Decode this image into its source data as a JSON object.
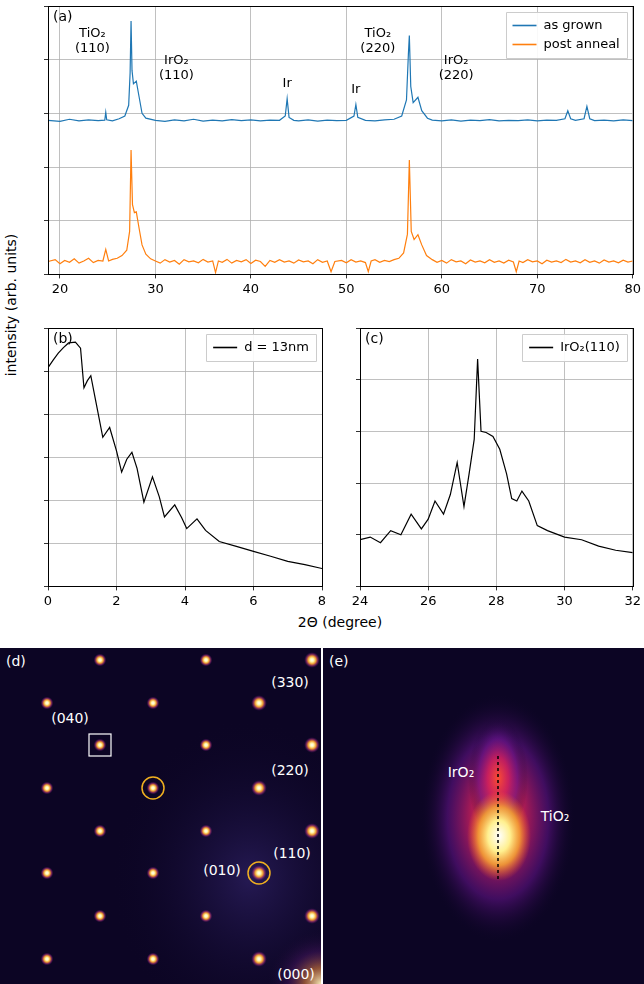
{
  "figure": {
    "ylabel": "intensity (arb. units)",
    "xlabel": "2Θ (degree)"
  },
  "chart_data": [
    {
      "panel": "(a)",
      "type": "line",
      "xlim": [
        18.75,
        80
      ],
      "xticks": [
        20,
        30,
        40,
        50,
        60,
        70,
        80
      ],
      "ylim": [
        0,
        10
      ],
      "yticks": [
        0,
        2,
        4,
        6,
        8,
        10
      ],
      "grid": true,
      "tick_labels": "x",
      "legend": "upper right",
      "series": [
        {
          "name": "as grown",
          "color": "#1f77b4",
          "x": [
            18.75,
            20,
            21,
            22,
            23,
            24,
            24.7,
            24.8,
            24.9,
            25.5,
            26.2,
            26.8,
            27.2,
            27.35,
            27.45,
            27.55,
            27.7,
            28,
            28.3,
            28.6,
            29,
            30,
            31,
            32,
            33,
            34,
            35,
            36,
            37,
            38,
            39,
            40,
            41,
            42,
            43,
            43.6,
            43.8,
            44,
            44.5,
            45,
            46,
            47,
            48,
            49,
            50,
            50.8,
            51,
            51.2,
            52,
            53,
            54,
            55,
            55.8,
            56.3,
            56.5,
            56.6,
            56.75,
            57,
            57.5,
            57.9,
            58.5,
            59,
            60,
            61,
            62,
            63,
            64,
            65,
            66,
            67,
            68,
            69,
            70,
            71,
            72,
            72.9,
            73.2,
            73.5,
            74,
            74.9,
            75.2,
            75.5,
            76,
            77,
            78,
            79,
            80
          ],
          "values": [
            5.74,
            5.7,
            5.78,
            5.72,
            5.76,
            5.73,
            5.75,
            6.04,
            5.76,
            5.72,
            5.8,
            5.9,
            6.3,
            7.5,
            9.44,
            7.6,
            7.1,
            7.2,
            6.6,
            6.0,
            5.82,
            5.74,
            5.7,
            5.76,
            5.72,
            5.78,
            5.71,
            5.75,
            5.72,
            5.77,
            5.73,
            5.76,
            5.72,
            5.75,
            5.74,
            5.9,
            6.55,
            5.85,
            5.74,
            5.72,
            5.76,
            5.71,
            5.75,
            5.73,
            5.74,
            5.9,
            6.33,
            5.85,
            5.74,
            5.72,
            5.76,
            5.78,
            5.9,
            6.5,
            8.2,
            8.9,
            7.0,
            6.4,
            6.6,
            6.1,
            5.82,
            5.75,
            5.72,
            5.76,
            5.71,
            5.75,
            5.73,
            5.77,
            5.72,
            5.74,
            5.73,
            5.76,
            5.72,
            5.75,
            5.74,
            5.8,
            6.1,
            5.8,
            5.74,
            5.8,
            6.26,
            5.8,
            5.73,
            5.75,
            5.72,
            5.76,
            5.73
          ]
        },
        {
          "name": "post anneal",
          "color": "#ff7f0e",
          "x": [
            18.75,
            19.5,
            20,
            20.5,
            21,
            21.5,
            22,
            22.5,
            23,
            23.5,
            24,
            24.5,
            24.8,
            25.1,
            25.5,
            26,
            26.5,
            27,
            27.3,
            27.45,
            27.6,
            27.8,
            28,
            28.3,
            28.6,
            29,
            29.5,
            30,
            30.5,
            31,
            31.5,
            32,
            32.5,
            33,
            33.5,
            34,
            34.5,
            35,
            35.5,
            36,
            36.3,
            36.6,
            37,
            37.5,
            38,
            38.5,
            39,
            39.5,
            40,
            40.5,
            41,
            41.5,
            42,
            42.5,
            43,
            43.5,
            44,
            44.5,
            45,
            45.5,
            46,
            46.5,
            47,
            47.5,
            48,
            48.4,
            48.8,
            49.5,
            50,
            50.5,
            51,
            51.5,
            52,
            52.3,
            52.6,
            53,
            53.5,
            54,
            54.5,
            55,
            55.5,
            56,
            56.4,
            56.6,
            56.8,
            57.1,
            57.5,
            57.9,
            58.4,
            59,
            59.5,
            60,
            60.5,
            61,
            61.5,
            62,
            62.5,
            63,
            63.5,
            64,
            64.5,
            65,
            65.5,
            66,
            66.5,
            67,
            67.5,
            67.8,
            68.1,
            68.5,
            69,
            69.5,
            70,
            70.5,
            71,
            71.5,
            72,
            72.5,
            73,
            73.5,
            74,
            74.5,
            75,
            75.5,
            76,
            76.5,
            77,
            77.5,
            78,
            78.5,
            79,
            79.5,
            80
          ],
          "values": [
            0.48,
            0.55,
            0.4,
            0.52,
            0.45,
            0.58,
            0.42,
            0.5,
            0.6,
            0.44,
            0.52,
            0.5,
            0.93,
            0.5,
            0.56,
            0.6,
            0.7,
            0.9,
            1.6,
            4.63,
            2.6,
            2.3,
            2.33,
            1.7,
            1.1,
            0.75,
            0.58,
            0.5,
            0.42,
            0.55,
            0.46,
            0.52,
            0.38,
            0.55,
            0.47,
            0.5,
            0.43,
            0.56,
            0.46,
            0.5,
            0.07,
            0.5,
            0.45,
            0.56,
            0.42,
            0.52,
            0.47,
            0.55,
            0.41,
            0.53,
            0.48,
            0.3,
            0.52,
            0.45,
            0.55,
            0.46,
            0.5,
            0.42,
            0.54,
            0.47,
            0.5,
            0.4,
            0.55,
            0.45,
            0.5,
            0.1,
            0.48,
            0.52,
            0.43,
            0.55,
            0.46,
            0.5,
            0.44,
            0.1,
            0.5,
            0.55,
            0.45,
            0.52,
            0.48,
            0.55,
            0.6,
            0.8,
            1.5,
            4.26,
            1.6,
            1.3,
            1.48,
            1.1,
            0.7,
            0.55,
            0.45,
            0.52,
            0.42,
            0.55,
            0.47,
            0.5,
            0.4,
            0.54,
            0.46,
            0.5,
            0.43,
            0.55,
            0.45,
            0.5,
            0.42,
            0.53,
            0.46,
            0.1,
            0.5,
            0.44,
            0.55,
            0.47,
            0.5,
            0.4,
            0.53,
            0.46,
            0.5,
            0.44,
            0.56,
            0.46,
            0.5,
            0.43,
            0.55,
            0.45,
            0.5,
            0.42,
            0.54,
            0.46,
            0.5,
            0.43,
            0.53,
            0.46,
            0.5
          ]
        }
      ],
      "annotations": [
        {
          "text": "TiO₂\n(110)",
          "x": 23.4,
          "y": 8.7
        },
        {
          "text": "IrO₂\n(110)",
          "x": 32.2,
          "y": 7.67
        },
        {
          "text": "Ir",
          "x": 43.8,
          "y": 7.1
        },
        {
          "text": "Ir",
          "x": 51,
          "y": 6.9
        },
        {
          "text": "TiO₂\n(220)",
          "x": 53.3,
          "y": 8.7
        },
        {
          "text": "IrO₂\n(220)",
          "x": 61.5,
          "y": 7.67
        }
      ]
    },
    {
      "panel": "(b)",
      "type": "line",
      "log": "y",
      "xlim": [
        0,
        8
      ],
      "xticks": [
        0,
        2,
        4,
        6,
        8
      ],
      "ylim": [
        10,
        10000000
      ],
      "yticks": [
        10,
        100,
        1000,
        10000,
        100000,
        1000000,
        10000000
      ],
      "grid": true,
      "tick_labels": "x",
      "legend": "upper right",
      "series": [
        {
          "name": "d = 13nm",
          "color": "#000000",
          "x": [
            0,
            0.15,
            0.3,
            0.45,
            0.6,
            0.8,
            0.95,
            1.05,
            1.15,
            1.25,
            1.4,
            1.6,
            1.8,
            2.0,
            2.15,
            2.3,
            2.45,
            2.6,
            2.8,
            3.05,
            3.25,
            3.4,
            3.7,
            3.9,
            4.05,
            4.35,
            4.6,
            5,
            5.5,
            6,
            6.5,
            7,
            7.5,
            8
          ],
          "values": [
            1200000,
            1800000,
            2600000,
            3500000,
            4500000,
            4700000,
            3400000,
            410000,
            600000,
            780000,
            190000,
            29000,
            49000,
            14000,
            4500,
            9000,
            13000,
            5500,
            900,
            3500,
            1200,
            410,
            780,
            400,
            220,
            370,
            200,
            110,
            85,
            65,
            50,
            38,
            32,
            26
          ]
        }
      ]
    },
    {
      "panel": "(c)",
      "type": "line",
      "log": "y",
      "xlim": [
        24,
        32
      ],
      "xticks": [
        24,
        26,
        28,
        30,
        32
      ],
      "ylim": [
        1,
        100000
      ],
      "yticks": [
        1,
        10,
        100,
        1000,
        10000,
        100000
      ],
      "grid": true,
      "tick_labels": "x",
      "legend": "upper right",
      "series": [
        {
          "name": "IrO₂(110)",
          "color": "#000000",
          "x": [
            24,
            24.3,
            24.6,
            24.9,
            25.2,
            25.5,
            25.8,
            26.0,
            26.2,
            26.45,
            26.65,
            26.85,
            27.05,
            27.2,
            27.35,
            27.45,
            27.55,
            27.7,
            27.9,
            28.1,
            28.3,
            28.45,
            28.6,
            28.75,
            28.95,
            29.2,
            29.5,
            30,
            30.5,
            31,
            31.5,
            32
          ],
          "values": [
            8,
            9,
            7,
            12,
            10,
            25,
            13,
            20,
            45,
            25,
            60,
            250,
            35,
            150,
            700,
            25000,
            1000,
            950,
            800,
            450,
            150,
            50,
            45,
            70,
            45,
            15,
            12,
            9,
            8,
            6,
            5,
            4.5
          ]
        }
      ]
    }
  ],
  "images": [
    {
      "panel": "(d)",
      "labels": [
        "(330)",
        "(040)",
        "(220)",
        "(110)",
        "(010)",
        "(000)"
      ]
    },
    {
      "panel": "(e)",
      "labels": [
        "IrO₂",
        "TiO₂"
      ]
    }
  ]
}
